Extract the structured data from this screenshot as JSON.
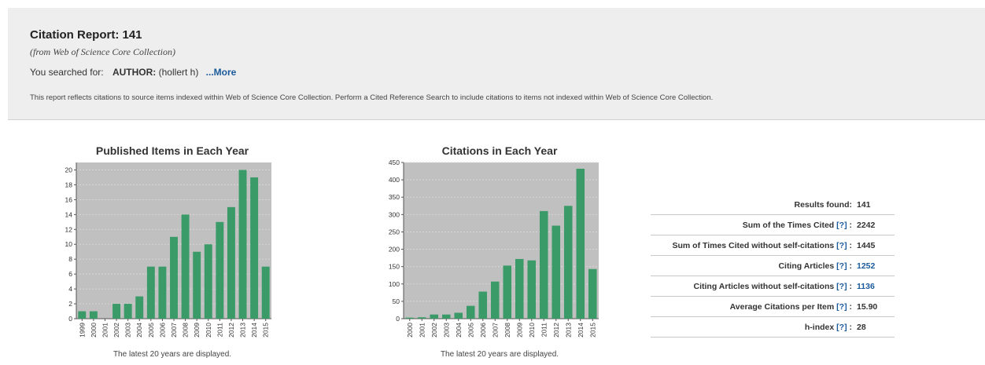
{
  "header": {
    "title": "Citation Report: 141",
    "subtitle": "(from Web of Science Core Collection)",
    "searched_label": "You searched for:",
    "query_field": "AUTHOR:",
    "query_value": "(hollert h)",
    "more_link": "...More",
    "note": "This report reflects citations to source items indexed within Web of Science Core Collection. Perform a Cited Reference Search to include citations to items not indexed within Web of Science Core Collection."
  },
  "metrics": [
    {
      "label": "Results found:",
      "help": "",
      "value": "141",
      "is_link": false
    },
    {
      "label": "Sum of the Times Cited",
      "help": "[?]",
      "value": "2242",
      "is_link": false
    },
    {
      "label": "Sum of Times Cited without self-citations",
      "help": "[?]",
      "value": "1445",
      "is_link": false
    },
    {
      "label": "Citing Articles",
      "help": "[?]",
      "value": "1252",
      "is_link": true
    },
    {
      "label": "Citing Articles without self-citations",
      "help": "[?]",
      "value": "1136",
      "is_link": true
    },
    {
      "label": "Average Citations per Item",
      "help": "[?]",
      "value": "15.90",
      "is_link": false
    },
    {
      "label": "h-index",
      "help": "[?]",
      "value": "28",
      "is_link": false
    }
  ],
  "colors": {
    "bar": "#3a9a68",
    "plot_bg": "#c0c0c0",
    "link": "#1a5a9b"
  },
  "chart_data": [
    {
      "type": "bar",
      "title": "Published Items in Each Year",
      "footnote": "The latest 20 years are displayed.",
      "categories": [
        "1999",
        "2000",
        "2001",
        "2002",
        "2003",
        "2004",
        "2005",
        "2006",
        "2007",
        "2008",
        "2009",
        "2010",
        "2011",
        "2012",
        "2013",
        "2014",
        "2015"
      ],
      "values": [
        1,
        1,
        0,
        2,
        2,
        3,
        7,
        7,
        11,
        14,
        9,
        10,
        13,
        15,
        20,
        19,
        7
      ],
      "ylim": [
        0,
        21
      ],
      "yticks": [
        0,
        2,
        4,
        6,
        8,
        10,
        12,
        14,
        16,
        18,
        20
      ],
      "grid": true
    },
    {
      "type": "bar",
      "title": "Citations in Each Year",
      "footnote": "The latest 20 years are displayed.",
      "categories": [
        "2000",
        "2001",
        "2002",
        "2003",
        "2004",
        "2005",
        "2006",
        "2007",
        "2008",
        "2009",
        "2010",
        "2011",
        "2012",
        "2013",
        "2014",
        "2015"
      ],
      "values": [
        3,
        4,
        12,
        12,
        17,
        37,
        78,
        107,
        153,
        172,
        168,
        310,
        268,
        325,
        432,
        143
      ],
      "ylim": [
        0,
        450
      ],
      "yticks": [
        0,
        50,
        100,
        150,
        200,
        250,
        300,
        350,
        400,
        450
      ],
      "grid": true
    }
  ]
}
